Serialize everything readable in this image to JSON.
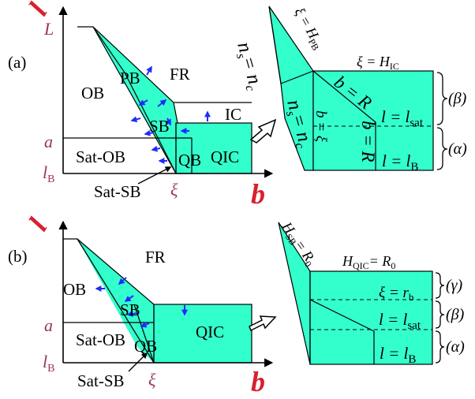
{
  "colors": {
    "region_fill": "#33ffcc",
    "arrow_blue": "#1f2bff",
    "axis_label_red": "#d8202f",
    "tick_label_plum": "#9a3658",
    "line": "#000000"
  },
  "panel_a": {
    "tag": "(a)",
    "y_axis_symbol": "l",
    "x_axis_symbol": "b",
    "tick_L": "L",
    "tick_a": "a",
    "tick_lB": "l",
    "tick_lB_sub": "B",
    "tick_xi": "ξ",
    "region_OB": "OB",
    "region_PB": "PB",
    "region_FR": "FR",
    "region_IC": "IC",
    "region_SB": "SB",
    "region_QIC": "QIC",
    "region_QB": "QB",
    "region_SatOB": "Sat-OB",
    "pointer_SatSB": "Sat-SB",
    "zoom": {
      "xi_HPB_main": "ξ = H",
      "xi_HPB_sub": "PB",
      "xi_HIC_main": "ξ = H",
      "xi_HIC_sub": "IC",
      "ns_nc_upper": "n",
      "ns_nc_upper_eq": "= n",
      "ns_nc_lower": "n",
      "ns_nc_lower_eq": "= n",
      "sub_s": "s",
      "sub_c": "c",
      "b_eq_R_upper": "b = R",
      "b_eq_R_lower": "b = R",
      "b_eq_xi": "b = ξ",
      "l_sat_main": "l = l",
      "l_sat_sub": "sat",
      "l_B_main": "l = l",
      "l_B_sub": "B",
      "brace_beta": "(β)",
      "brace_alpha": "(α)"
    }
  },
  "panel_b": {
    "tag": "(b)",
    "y_axis_symbol": "l",
    "x_axis_symbol": "b",
    "tick_a": "a",
    "tick_lB": "l",
    "tick_lB_sub": "B",
    "tick_xi": "ξ",
    "region_FR": "FR",
    "region_OB": "OB",
    "region_SB": "SB",
    "region_QIC": "QIC",
    "region_QB": "QB",
    "region_SatOB": "Sat-OB",
    "pointer_SatSB": "Sat-SB",
    "zoom": {
      "HSB_main": "H",
      "HSB_sub": "SB",
      "HSB_eq": "= R",
      "HSB_eq_sub": "0",
      "HQIC_main": "H",
      "HQIC_sub": "QIC",
      "HQIC_eq": "= R",
      "HQIC_eq_sub": "0",
      "xi_rb_main": "ξ = r",
      "xi_rb_sub": "b",
      "l_sat_main": "l = l",
      "l_sat_sub": "sat",
      "l_B_main": "l = l",
      "l_B_sub": "B",
      "brace_gamma": "(γ)",
      "brace_beta": "(β)",
      "brace_alpha": "(α)"
    }
  }
}
